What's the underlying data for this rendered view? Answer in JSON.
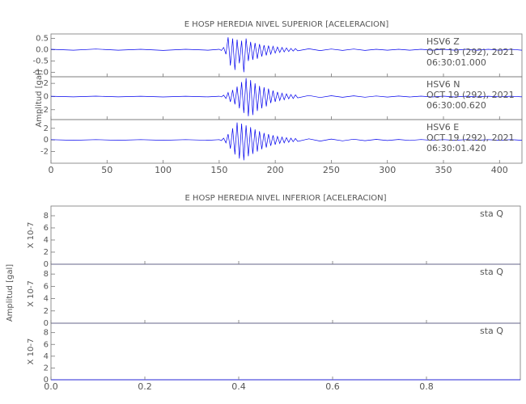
{
  "chart_data": [
    {
      "type": "line",
      "title": "E HOSP HEREDIA NIVEL SUPERIOR [ACELERACION]",
      "ylabel": "Amplitud [gal]",
      "xlim": [
        0,
        420
      ],
      "xticks": [
        0,
        50,
        100,
        150,
        200,
        250,
        300,
        350,
        400
      ],
      "x": [
        0,
        20,
        40,
        60,
        80,
        100,
        120,
        140,
        150,
        152,
        154,
        156,
        158,
        160,
        162,
        164,
        166,
        168,
        170,
        172,
        174,
        176,
        178,
        180,
        182,
        184,
        186,
        188,
        190,
        192,
        194,
        196,
        198,
        200,
        202,
        204,
        206,
        208,
        210,
        212,
        214,
        216,
        218,
        220,
        230,
        240,
        250,
        260,
        270,
        280,
        290,
        300,
        310,
        320,
        330,
        340,
        350,
        360,
        370,
        380,
        390,
        400,
        410,
        420
      ],
      "panels": [
        {
          "ylim": [
            -1.2,
            0.7
          ],
          "yticks": [
            {
              "value": 0.5,
              "label": "0.5"
            },
            {
              "value": 0.0,
              "label": "0.0"
            },
            {
              "value": -0.5,
              "label": "-0.5"
            },
            {
              "value": -1.0,
              "label": "-1.0"
            }
          ],
          "annotations": [
            "HSV6   Z",
            "OCT 19 (292), 2021",
            "06:30:01.000"
          ],
          "color": "#0000ee",
          "values": [
            0.02,
            -0.02,
            0.03,
            -0.02,
            0.02,
            -0.03,
            0.02,
            -0.02,
            0.02,
            -0.03,
            0.1,
            -0.2,
            0.55,
            -0.7,
            0.5,
            -0.9,
            0.45,
            -0.6,
            0.4,
            -1.0,
            0.5,
            -0.5,
            0.35,
            -0.45,
            0.3,
            -0.4,
            0.25,
            -0.3,
            0.2,
            -0.25,
            0.18,
            -0.2,
            0.15,
            -0.15,
            0.12,
            -0.12,
            0.1,
            -0.1,
            0.08,
            -0.08,
            0.06,
            -0.06,
            0.05,
            -0.05,
            0.04,
            -0.04,
            0.03,
            -0.03,
            0.03,
            -0.03,
            0.02,
            -0.02,
            0.02,
            -0.02,
            0.02,
            -0.02,
            0.02,
            -0.02,
            0.02,
            -0.02,
            0.02,
            -0.02,
            0.02,
            -0.02
          ]
        },
        {
          "ylim": [
            -3.5,
            3
          ],
          "yticks": [
            2,
            0,
            -2
          ],
          "annotations": [
            "HSV6   N",
            "OCT 19 (292), 2021",
            "06:30:00.620"
          ],
          "color": "#0000ee",
          "values": [
            0.05,
            -0.05,
            0.06,
            -0.05,
            0.05,
            -0.06,
            0.05,
            -0.05,
            0.05,
            -0.05,
            0.2,
            -0.3,
            0.6,
            -0.8,
            1.0,
            -1.2,
            1.5,
            -1.8,
            2.2,
            -2.5,
            2.8,
            -3.0,
            2.5,
            -2.8,
            2.0,
            -2.2,
            1.6,
            -1.8,
            1.4,
            -1.5,
            1.2,
            -1.0,
            0.9,
            -0.8,
            0.7,
            -0.6,
            0.5,
            -0.5,
            0.4,
            -0.35,
            0.3,
            -0.3,
            0.25,
            -0.2,
            0.15,
            -0.15,
            0.12,
            -0.12,
            0.1,
            -0.1,
            0.08,
            -0.08,
            0.07,
            -0.07,
            0.06,
            -0.06,
            0.06,
            -0.06,
            0.05,
            -0.05,
            0.05,
            -0.05,
            0.05,
            -0.05
          ]
        },
        {
          "ylim": [
            -4,
            3.5
          ],
          "yticks": [
            2,
            0,
            -2
          ],
          "annotations": [
            "HSV6   E",
            "OCT 19 (292), 2021",
            "06:30:01.420"
          ],
          "color": "#0000ee",
          "values": [
            0.05,
            -0.05,
            0.06,
            -0.05,
            0.05,
            -0.06,
            0.05,
            -0.05,
            0.05,
            -0.1,
            0.3,
            -0.5,
            1.0,
            -1.5,
            2.0,
            -2.5,
            3.0,
            -3.2,
            2.8,
            -3.5,
            2.5,
            -2.8,
            2.2,
            -2.4,
            1.8,
            -2.0,
            1.5,
            -1.6,
            1.2,
            -1.3,
            1.0,
            -1.0,
            0.8,
            -0.8,
            0.6,
            -0.6,
            0.5,
            -0.5,
            0.4,
            -0.4,
            0.3,
            -0.3,
            0.25,
            -0.25,
            0.2,
            -0.2,
            0.15,
            -0.15,
            0.12,
            -0.12,
            0.1,
            -0.1,
            0.08,
            -0.08,
            0.07,
            -0.07,
            0.06,
            -0.06,
            0.06,
            -0.06,
            0.05,
            -0.05,
            0.05,
            -0.05
          ]
        }
      ]
    },
    {
      "type": "line",
      "title": "E HOSP HEREDIA NIVEL INFERIOR [ACELERACION]",
      "ylabel": "Amplitud [gal]",
      "xlim": [
        0,
        1
      ],
      "xticks": [
        {
          "value": 0,
          "label": "0.0"
        },
        {
          "value": 0.2,
          "label": "0.2"
        },
        {
          "value": 0.4,
          "label": "0.4"
        },
        {
          "value": 0.6,
          "label": "0.6"
        },
        {
          "value": 0.8,
          "label": "0.8"
        }
      ],
      "x": [
        0,
        1
      ],
      "panels": [
        {
          "ylim": [
            0,
            9.6
          ],
          "yticks": [
            0,
            2,
            4,
            6,
            8
          ],
          "sublabel": "X 10-7",
          "annotations": [
            "sta   Q"
          ],
          "color": "#0000ee",
          "values": [
            0,
            0
          ]
        },
        {
          "ylim": [
            0,
            9.6
          ],
          "yticks": [
            0,
            2,
            4,
            6,
            8
          ],
          "sublabel": "X 10-7",
          "annotations": [
            "sta   Q"
          ],
          "color": "#0000ee",
          "values": [
            0,
            0
          ]
        },
        {
          "ylim": [
            0,
            9.6
          ],
          "yticks": [
            0,
            2,
            4,
            6,
            8
          ],
          "sublabel": "X 10-7",
          "annotations": [
            "sta   Q"
          ],
          "color": "#0000ee",
          "values": [
            0,
            0
          ]
        }
      ]
    }
  ]
}
